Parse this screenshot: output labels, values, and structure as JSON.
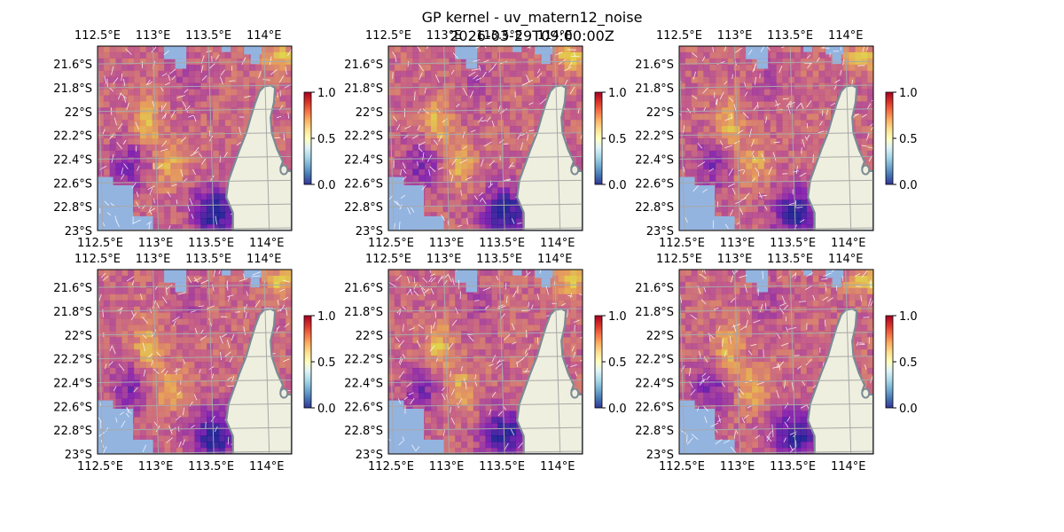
{
  "title_line1": "GP kernel - uv_matern12_noise",
  "title_line2": "2026-03-29T09:00:00Z",
  "lon_ticks": [
    "112.5°E",
    "113°E",
    "113.5°E",
    "114°E"
  ],
  "lon_values": [
    112.5,
    113.0,
    113.5,
    114.0
  ],
  "lat_ticks": [
    "21.6°S",
    "21.8°S",
    "22°S",
    "22.2°S",
    "22.4°S",
    "22.6°S",
    "22.8°S",
    "23°S"
  ],
  "lat_values": [
    -21.6,
    -21.8,
    -22.0,
    -22.2,
    -22.4,
    -22.6,
    -22.8,
    -23.0
  ],
  "extent": {
    "lon_min": 112.5,
    "lon_max": 114.25,
    "lat_min": -23.0,
    "lat_max": -21.45
  },
  "colorbar_ticks": [
    "0.0",
    "0.5",
    "1.0"
  ],
  "colorbar_values": [
    0.0,
    0.5,
    1.0
  ],
  "colormaps": {
    "field": "plasma",
    "colorbar": "RdYlBu_r"
  },
  "colors": {
    "ocean_nodata": "#94b4e0",
    "land": "#efefdf",
    "coast": "#7a8a95",
    "grid": "#a8a8a8",
    "arrows": "#ffffff"
  },
  "panels": [
    {
      "id": 1,
      "row": 1,
      "col": 1
    },
    {
      "id": 2,
      "row": 1,
      "col": 2
    },
    {
      "id": 3,
      "row": 1,
      "col": 3
    },
    {
      "id": 4,
      "row": 2,
      "col": 1
    },
    {
      "id": 5,
      "row": 2,
      "col": 2
    },
    {
      "id": 6,
      "row": 2,
      "col": 3
    }
  ]
}
